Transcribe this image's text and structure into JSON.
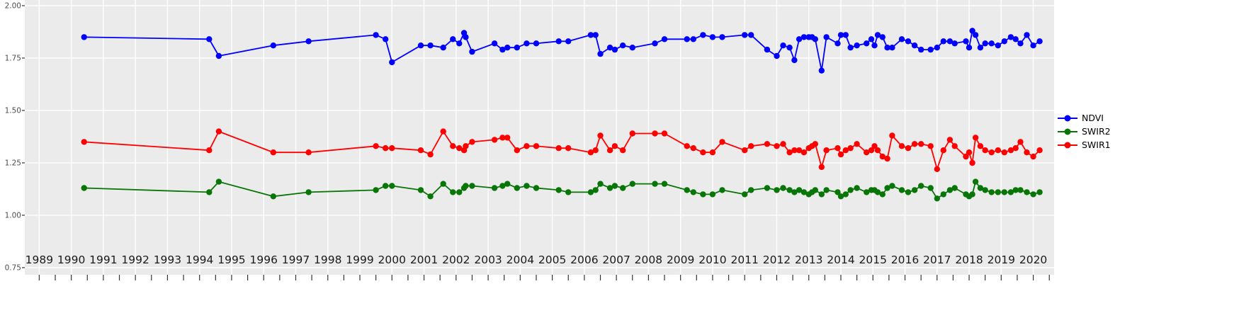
{
  "chart_data": {
    "type": "line",
    "title": "",
    "xlabel": "",
    "ylabel": "",
    "grid": true,
    "panel_bg": "#EBEBEB",
    "grid_color": "#FFFFFF",
    "axis_text_color": "#333333",
    "legend_position": "right",
    "xlim": [
      1988.55,
      2020.65
    ],
    "ylim": [
      0.716,
      2.027
    ],
    "xticks": [
      1989,
      1990,
      1991,
      1992,
      1993,
      1994,
      1995,
      1996,
      1997,
      1998,
      1999,
      2000,
      2001,
      2002,
      2003,
      2004,
      2005,
      2006,
      2007,
      2008,
      2009,
      2010,
      2011,
      2012,
      2013,
      2014,
      2015,
      2016,
      2017,
      2018,
      2019,
      2020
    ],
    "yticks": [
      0.75,
      1.0,
      1.25,
      1.5,
      1.75,
      2.0
    ],
    "ytick_labels": [
      "0.75",
      "1.00",
      "1.25",
      "1.50",
      "1.75",
      "2.00"
    ],
    "x": [
      1990.4,
      1994.3,
      1994.6,
      1996.3,
      1997.4,
      1999.5,
      1999.8,
      2000.0,
      2000.9,
      2001.2,
      2001.6,
      2001.9,
      2002.1,
      2002.25,
      2002.3,
      2002.5,
      2003.2,
      2003.45,
      2003.6,
      2003.9,
      2004.2,
      2004.5,
      2005.2,
      2005.5,
      2006.2,
      2006.35,
      2006.5,
      2006.8,
      2006.95,
      2007.2,
      2007.5,
      2008.2,
      2008.5,
      2009.2,
      2009.4,
      2009.7,
      2010.0,
      2010.3,
      2011.0,
      2011.2,
      2011.7,
      2012.0,
      2012.2,
      2012.4,
      2012.55,
      2012.7,
      2012.85,
      2013.0,
      2013.1,
      2013.2,
      2013.4,
      2013.55,
      2013.9,
      2014.0,
      2014.15,
      2014.3,
      2014.5,
      2014.8,
      2014.95,
      2015.05,
      2015.15,
      2015.3,
      2015.45,
      2015.6,
      2015.9,
      2016.1,
      2016.3,
      2016.5,
      2016.8,
      2017.0,
      2017.2,
      2017.4,
      2017.55,
      2017.9,
      2018.0,
      2018.1,
      2018.2,
      2018.35,
      2018.5,
      2018.7,
      2018.9,
      2019.1,
      2019.3,
      2019.45,
      2019.6,
      2019.8,
      2020.0,
      2020.2
    ],
    "series": [
      {
        "name": "NDVI",
        "color": "#0000FF",
        "values": [
          1.85,
          1.84,
          1.76,
          1.81,
          1.83,
          1.86,
          1.84,
          1.73,
          1.81,
          1.81,
          1.8,
          1.84,
          1.82,
          1.87,
          1.85,
          1.78,
          1.82,
          1.79,
          1.8,
          1.8,
          1.82,
          1.82,
          1.83,
          1.83,
          1.86,
          1.86,
          1.77,
          1.8,
          1.79,
          1.81,
          1.8,
          1.82,
          1.84,
          1.84,
          1.84,
          1.86,
          1.85,
          1.85,
          1.86,
          1.86,
          1.79,
          1.76,
          1.81,
          1.8,
          1.74,
          1.84,
          1.85,
          1.85,
          1.85,
          1.84,
          1.69,
          1.85,
          1.82,
          1.86,
          1.86,
          1.8,
          1.81,
          1.82,
          1.84,
          1.81,
          1.86,
          1.85,
          1.8,
          1.8,
          1.84,
          1.83,
          1.81,
          1.79,
          1.79,
          1.8,
          1.83,
          1.83,
          1.82,
          1.83,
          1.8,
          1.88,
          1.86,
          1.8,
          1.82,
          1.82,
          1.81,
          1.83,
          1.85,
          1.84,
          1.82,
          1.86,
          1.81,
          1.83
        ]
      },
      {
        "name": "SWIR2",
        "color": "#077607",
        "values": [
          1.13,
          1.11,
          1.16,
          1.09,
          1.11,
          1.12,
          1.14,
          1.14,
          1.12,
          1.09,
          1.15,
          1.11,
          1.11,
          1.13,
          1.14,
          1.14,
          1.13,
          1.14,
          1.15,
          1.13,
          1.14,
          1.13,
          1.12,
          1.11,
          1.11,
          1.12,
          1.15,
          1.13,
          1.14,
          1.13,
          1.15,
          1.15,
          1.15,
          1.12,
          1.11,
          1.1,
          1.1,
          1.12,
          1.1,
          1.12,
          1.13,
          1.12,
          1.13,
          1.12,
          1.11,
          1.12,
          1.11,
          1.1,
          1.11,
          1.12,
          1.1,
          1.12,
          1.11,
          1.09,
          1.1,
          1.12,
          1.13,
          1.11,
          1.12,
          1.12,
          1.11,
          1.1,
          1.13,
          1.14,
          1.12,
          1.11,
          1.12,
          1.14,
          1.13,
          1.08,
          1.1,
          1.12,
          1.13,
          1.1,
          1.09,
          1.1,
          1.16,
          1.13,
          1.12,
          1.11,
          1.11,
          1.11,
          1.11,
          1.12,
          1.12,
          1.11,
          1.1,
          1.11
        ]
      },
      {
        "name": "SWIR1",
        "color": "#FF0000",
        "values": [
          1.35,
          1.31,
          1.4,
          1.3,
          1.3,
          1.33,
          1.32,
          1.32,
          1.31,
          1.29,
          1.4,
          1.33,
          1.32,
          1.31,
          1.33,
          1.35,
          1.36,
          1.37,
          1.37,
          1.31,
          1.33,
          1.33,
          1.32,
          1.32,
          1.3,
          1.31,
          1.38,
          1.31,
          1.33,
          1.31,
          1.39,
          1.39,
          1.39,
          1.33,
          1.32,
          1.3,
          1.3,
          1.35,
          1.31,
          1.33,
          1.34,
          1.33,
          1.34,
          1.3,
          1.31,
          1.31,
          1.3,
          1.32,
          1.33,
          1.34,
          1.23,
          1.31,
          1.32,
          1.29,
          1.31,
          1.32,
          1.34,
          1.3,
          1.31,
          1.33,
          1.31,
          1.28,
          1.27,
          1.38,
          1.33,
          1.32,
          1.34,
          1.34,
          1.33,
          1.22,
          1.31,
          1.36,
          1.33,
          1.28,
          1.3,
          1.25,
          1.37,
          1.33,
          1.31,
          1.3,
          1.31,
          1.3,
          1.31,
          1.32,
          1.35,
          1.3,
          1.28,
          1.31
        ]
      }
    ]
  },
  "legend": {
    "items": [
      {
        "label": "NDVI",
        "color": "#0000FF"
      },
      {
        "label": "SWIR2",
        "color": "#077607"
      },
      {
        "label": "SWIR1",
        "color": "#FF0000"
      }
    ]
  }
}
